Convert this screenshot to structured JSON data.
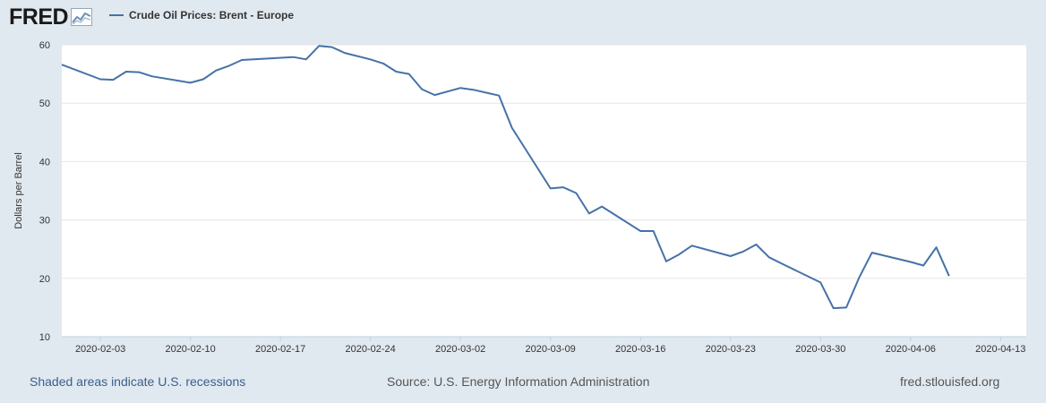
{
  "logo": {
    "text": "FRED",
    "icon": "line-chart-icon"
  },
  "colors": {
    "series": "#4572a7",
    "background": "#e1e9f0",
    "plot_bg": "#ffffff",
    "grid": "#e6e6e6"
  },
  "chart_data": {
    "type": "line",
    "title": "",
    "ylabel": "Dollars per Barrel",
    "xlabel": "",
    "ylim": [
      10,
      60
    ],
    "yticks": [
      10,
      20,
      30,
      40,
      50,
      60
    ],
    "xlim": [
      "2020-01-31",
      "2020-04-15"
    ],
    "xticks": [
      "2020-02-03",
      "2020-02-10",
      "2020-02-17",
      "2020-02-24",
      "2020-03-02",
      "2020-03-09",
      "2020-03-16",
      "2020-03-23",
      "2020-03-30",
      "2020-04-06",
      "2020-04-13"
    ],
    "series": [
      {
        "name": "Crude Oil Prices: Brent - Europe",
        "points": [
          [
            "2020-01-31",
            56.6
          ],
          [
            "2020-02-03",
            54.1
          ],
          [
            "2020-02-04",
            54.0
          ],
          [
            "2020-02-05",
            55.4
          ],
          [
            "2020-02-06",
            55.3
          ],
          [
            "2020-02-07",
            54.6
          ],
          [
            "2020-02-10",
            53.5
          ],
          [
            "2020-02-11",
            54.1
          ],
          [
            "2020-02-12",
            55.6
          ],
          [
            "2020-02-13",
            56.4
          ],
          [
            "2020-02-14",
            57.4
          ],
          [
            "2020-02-18",
            57.9
          ],
          [
            "2020-02-19",
            57.5
          ],
          [
            "2020-02-20",
            59.8
          ],
          [
            "2020-02-21",
            59.6
          ],
          [
            "2020-02-22",
            58.6
          ],
          [
            "2020-02-24",
            57.5
          ],
          [
            "2020-02-25",
            56.8
          ],
          [
            "2020-02-26",
            55.4
          ],
          [
            "2020-02-27",
            55.0
          ],
          [
            "2020-02-28",
            52.4
          ],
          [
            "2020-02-29",
            51.4
          ],
          [
            "2020-03-02",
            52.6
          ],
          [
            "2020-03-03",
            52.3
          ],
          [
            "2020-03-04",
            51.8
          ],
          [
            "2020-03-05",
            51.3
          ],
          [
            "2020-03-06",
            45.8
          ],
          [
            "2020-03-09",
            35.4
          ],
          [
            "2020-03-10",
            35.6
          ],
          [
            "2020-03-11",
            34.6
          ],
          [
            "2020-03-12",
            31.1
          ],
          [
            "2020-03-13",
            32.3
          ],
          [
            "2020-03-16",
            28.1
          ],
          [
            "2020-03-17",
            28.1
          ],
          [
            "2020-03-18",
            22.9
          ],
          [
            "2020-03-19",
            24.1
          ],
          [
            "2020-03-20",
            25.6
          ],
          [
            "2020-03-23",
            23.8
          ],
          [
            "2020-03-24",
            24.6
          ],
          [
            "2020-03-25",
            25.8
          ],
          [
            "2020-03-26",
            23.6
          ],
          [
            "2020-03-27",
            22.5
          ],
          [
            "2020-03-30",
            19.3
          ],
          [
            "2020-03-31",
            14.9
          ],
          [
            "2020-04-01",
            15.0
          ],
          [
            "2020-04-02",
            20.1
          ],
          [
            "2020-04-03",
            24.4
          ],
          [
            "2020-04-06",
            22.8
          ],
          [
            "2020-04-07",
            22.2
          ],
          [
            "2020-04-08",
            25.3
          ],
          [
            "2020-04-09",
            20.4
          ]
        ]
      }
    ]
  },
  "footer": {
    "recession_note": "Shaded areas indicate U.S. recessions",
    "source": "Source: U.S. Energy Information Administration",
    "url": "fred.stlouisfed.org"
  }
}
